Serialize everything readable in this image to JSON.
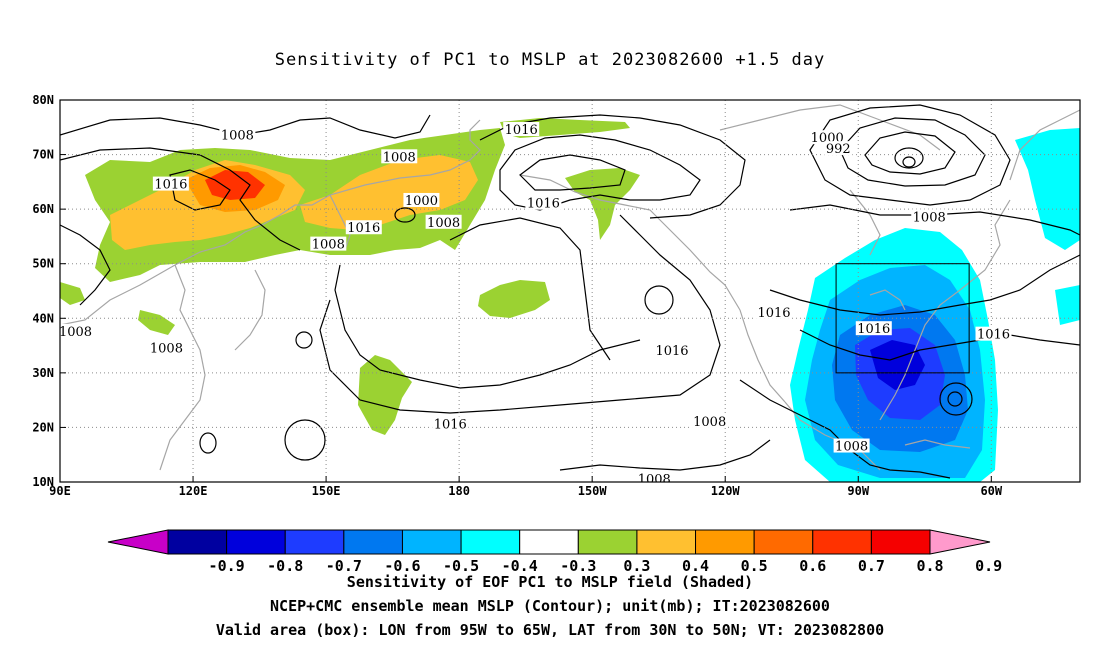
{
  "title": "Sensitivity of PC1 to MSLP at 2023082600 +1.5 day",
  "map": {
    "lon_ticks": [
      "90E",
      "120E",
      "150E",
      "180",
      "150W",
      "120W",
      "90W",
      "60W"
    ],
    "lat_ticks": [
      "80N",
      "70N",
      "60N",
      "50N",
      "40N",
      "30N",
      "20N",
      "10N"
    ],
    "lon_range": [
      "90E",
      "40W"
    ],
    "lat_range": [
      10,
      80
    ],
    "grid": "dotted",
    "box": {
      "lon": [
        "95W",
        "65W"
      ],
      "lat": [
        "30N",
        "50N"
      ]
    },
    "contour_labels": [
      {
        "text": "1008",
        "lon": 130,
        "lat": 73.5
      },
      {
        "text": "1016",
        "lon": 115,
        "lat": 64.5
      },
      {
        "text": "1008",
        "lon": 166.5,
        "lat": 69.5
      },
      {
        "text": "1016",
        "lon": 194,
        "lat": 74.5
      },
      {
        "text": "1000",
        "lon": 171.5,
        "lat": 61.5
      },
      {
        "text": "1008",
        "lon": 176.5,
        "lat": 57.5
      },
      {
        "text": "1016",
        "lon": 199,
        "lat": 61.0
      },
      {
        "text": "1016",
        "lon": 158.5,
        "lat": 56.5
      },
      {
        "text": "1008",
        "lon": 150.5,
        "lat": 53.5
      },
      {
        "text": "1000",
        "lon": 263,
        "lat": 73.0
      },
      {
        "text": "992",
        "lon": 265.5,
        "lat": 71.0
      },
      {
        "text": "1008",
        "lon": 286,
        "lat": 58.5
      },
      {
        "text": "1016",
        "lon": 251,
        "lat": 41.0
      },
      {
        "text": "1016",
        "lon": 273.5,
        "lat": 38.0
      },
      {
        "text": "1016",
        "lon": 300.5,
        "lat": 37.0
      },
      {
        "text": "1016",
        "lon": 228,
        "lat": 34.0
      },
      {
        "text": "1008",
        "lon": 93.5,
        "lat": 37.5
      },
      {
        "text": "1008",
        "lon": 114,
        "lat": 34.5
      },
      {
        "text": "1016",
        "lon": 178,
        "lat": 20.5
      },
      {
        "text": "1008",
        "lon": 236.5,
        "lat": 21.0
      },
      {
        "text": "1008",
        "lon": 268.5,
        "lat": 16.5
      },
      {
        "text": "1008",
        "lon": 224,
        "lat": 10.5
      }
    ]
  },
  "colorbar": {
    "labels": [
      "-0.9",
      "-0.8",
      "-0.7",
      "-0.6",
      "-0.5",
      "-0.4",
      "-0.3",
      "0.3",
      "0.4",
      "0.5",
      "0.6",
      "0.7",
      "0.8",
      "0.9"
    ],
    "colors": [
      "#c800c8",
      "#0000a0",
      "#0000dc",
      "#1e3cff",
      "#0078f0",
      "#00b4ff",
      "#00ffff",
      "#ffffff",
      "#9bd232",
      "#ffc030",
      "#ff9a00",
      "#ff6a00",
      "#ff3200",
      "#f50000",
      "#ff9acc"
    ]
  },
  "captions": {
    "line1": "Sensitivity of EOF PC1 to MSLP field (Shaded)",
    "line2": "NCEP+CMC ensemble mean MSLP (Contour); unit(mb); IT:2023082600",
    "line3": "Valid area (box): LON from 95W to 65W, LAT from 30N to 50N; VT: 2023082800"
  }
}
